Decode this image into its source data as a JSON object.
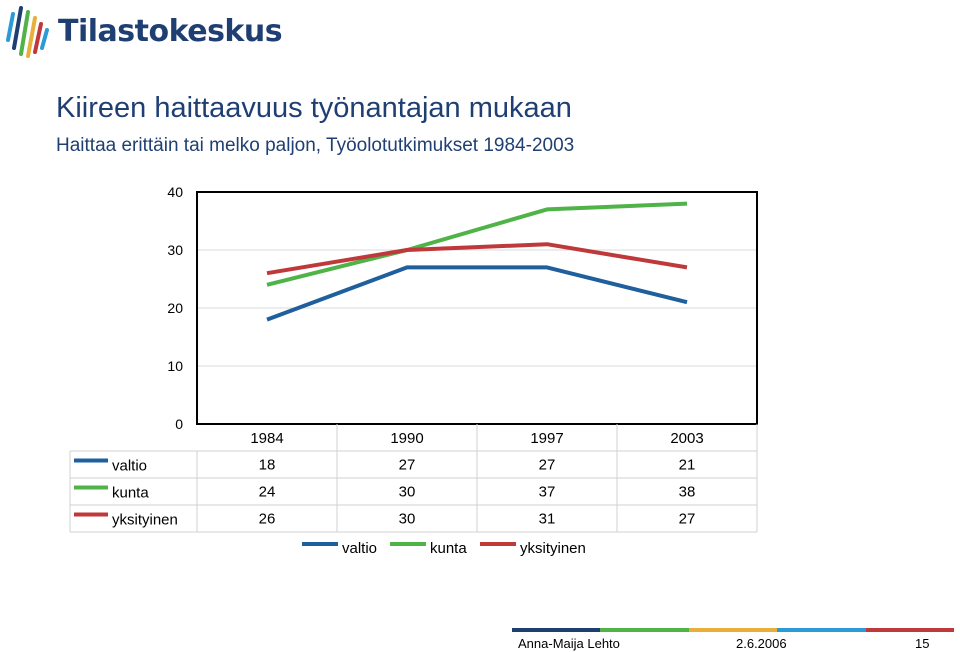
{
  "logo": {
    "text": "Tilastokeskus"
  },
  "slide": {
    "title": "Kiireen haittaavuus työnantajan mukaan",
    "subtitle": "Haittaa erittäin tai melko paljon, Työolotutkimukset 1984-2003"
  },
  "chart_data": {
    "type": "line",
    "title": "",
    "xlabel": "",
    "ylabel": "",
    "categories": [
      "1984",
      "1990",
      "1997",
      "2003"
    ],
    "series": [
      {
        "name": "valtio",
        "values": [
          18,
          27,
          27,
          21
        ],
        "color": "#1f5f9e"
      },
      {
        "name": "kunta",
        "values": [
          24,
          30,
          37,
          38
        ],
        "color": "#4fb348"
      },
      {
        "name": "yksityinen",
        "values": [
          26,
          30,
          31,
          27
        ],
        "color": "#c0393a"
      }
    ],
    "ylim": [
      0,
      40
    ],
    "yticks": [
      0,
      10,
      20,
      30,
      40
    ],
    "grid": true,
    "data_table": true,
    "legend_position": "bottom"
  },
  "footer": {
    "author": "Anna-Maija Lehto",
    "date": "2.6.2006",
    "page": "15",
    "bar_colors": [
      "#1f3f73",
      "#4fb348",
      "#e8b03a",
      "#2a9bd6",
      "#c0393a"
    ]
  }
}
